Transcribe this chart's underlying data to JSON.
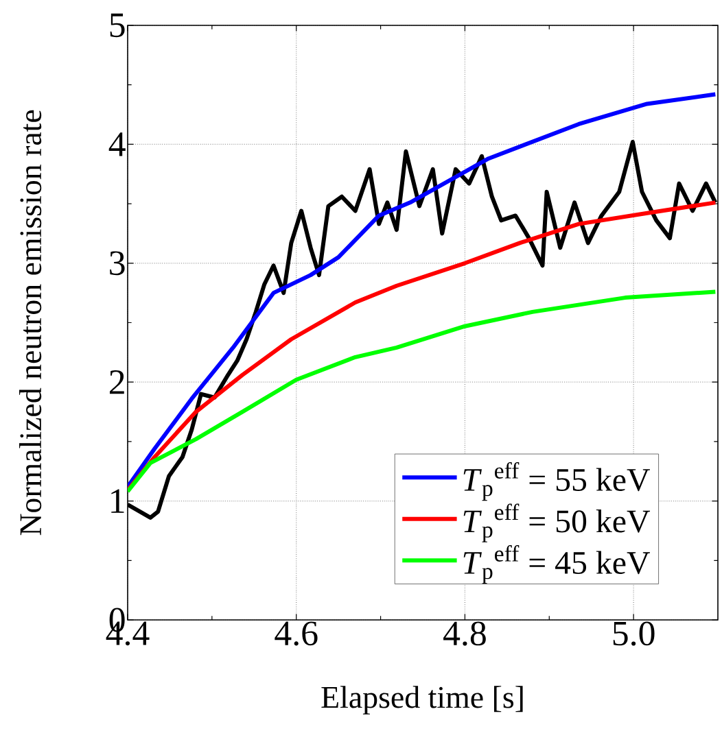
{
  "chart_data": {
    "type": "line",
    "xlabel": "Elapsed time [s]",
    "ylabel": "Normalized neutron emission rate",
    "xlim": [
      4.4,
      5.1
    ],
    "ylim": [
      0,
      5
    ],
    "xticks": [
      {
        "value": 4.4,
        "label": "4.4"
      },
      {
        "value": 4.6,
        "label": "4.6"
      },
      {
        "value": 4.8,
        "label": "4.8"
      },
      {
        "value": 5.0,
        "label": "5.0"
      }
    ],
    "yticks": [
      0,
      1,
      2,
      3,
      4,
      5
    ],
    "grid": true,
    "legend": "bottom right",
    "marker": "none",
    "line_style": "solid",
    "series": [
      {
        "color": "#000000",
        "x": [
          4.4,
          4.427,
          4.436,
          4.449,
          4.465,
          4.476,
          4.487,
          4.503,
          4.519,
          4.53,
          4.541,
          4.552,
          4.562,
          4.573,
          4.585,
          4.594,
          4.606,
          4.617,
          4.627,
          4.638,
          4.654,
          4.67,
          4.687,
          4.698,
          4.708,
          4.719,
          4.73,
          4.746,
          4.762,
          4.773,
          4.789,
          4.805,
          4.82,
          4.832,
          4.843,
          4.86,
          4.876,
          4.892,
          4.897,
          4.913,
          4.93,
          4.946,
          4.962,
          4.983,
          4.999,
          5.01,
          5.027,
          5.043,
          5.054,
          5.07,
          5.086,
          5.097
        ],
        "values": [
          0.97,
          0.86,
          0.91,
          1.21,
          1.37,
          1.6,
          1.9,
          1.87,
          2.06,
          2.18,
          2.36,
          2.59,
          2.82,
          2.98,
          2.75,
          3.17,
          3.44,
          3.13,
          2.9,
          3.48,
          3.56,
          3.44,
          3.79,
          3.33,
          3.51,
          3.28,
          3.94,
          3.48,
          3.79,
          3.25,
          3.79,
          3.67,
          3.9,
          3.56,
          3.36,
          3.4,
          3.21,
          2.98,
          3.6,
          3.13,
          3.51,
          3.17,
          3.4,
          3.6,
          4.02,
          3.6,
          3.36,
          3.21,
          3.67,
          3.44,
          3.67,
          3.51
        ]
      },
      {
        "name": "*T*$_{p}$$^{eff}$ = 55 keV",
        "color": "#0000ff",
        "x": [
          4.4,
          4.432,
          4.476,
          4.525,
          4.573,
          4.617,
          4.65,
          4.698,
          4.735,
          4.828,
          4.935,
          5.016,
          5.097
        ],
        "values": [
          1.12,
          1.44,
          1.86,
          2.29,
          2.75,
          2.9,
          3.05,
          3.4,
          3.51,
          3.88,
          4.17,
          4.34,
          4.42
        ]
      },
      {
        "name": "*T*$_{p}$$^{eff}$ = 50 keV",
        "color": "#ff0000",
        "x": [
          4.4,
          4.432,
          4.481,
          4.536,
          4.594,
          4.67,
          4.719,
          4.8,
          4.865,
          4.935,
          5.015,
          5.097
        ],
        "values": [
          1.09,
          1.37,
          1.75,
          2.06,
          2.36,
          2.67,
          2.81,
          3.0,
          3.17,
          3.33,
          3.42,
          3.51
        ]
      },
      {
        "name": "*T*$_{p}$$^{eff}$ = 45 keV",
        "color": "#00ff00",
        "x": [
          4.4,
          4.427,
          4.481,
          4.536,
          4.6,
          4.67,
          4.719,
          4.8,
          4.88,
          4.99,
          5.097
        ],
        "values": [
          1.08,
          1.32,
          1.52,
          1.75,
          2.02,
          2.21,
          2.29,
          2.47,
          2.59,
          2.71,
          2.76
        ]
      }
    ]
  }
}
